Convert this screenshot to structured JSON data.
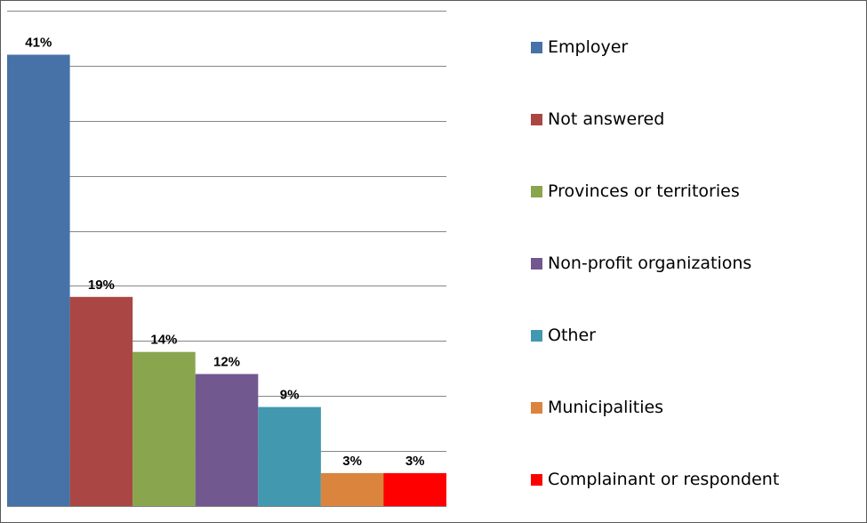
{
  "chart_data": {
    "type": "bar",
    "title": "",
    "xlabel": "",
    "ylabel": "",
    "ylim": [
      0,
      45
    ],
    "grid": true,
    "legend_position": "right",
    "categories": [
      "Employer",
      "Not answered",
      "Provinces or territories",
      "Non-profit organizations",
      "Other",
      "Municipalities",
      "Complainant or respondent"
    ],
    "values": [
      41,
      19,
      14,
      12,
      9,
      3,
      3
    ],
    "data_labels": [
      "41%",
      "19%",
      "14%",
      "12%",
      "9%",
      "3%",
      "3%"
    ],
    "colors": [
      "#4672a8",
      "#aa4744",
      "#89a54e",
      "#71588f",
      "#4198af",
      "#db843d",
      "#ff0000"
    ]
  }
}
